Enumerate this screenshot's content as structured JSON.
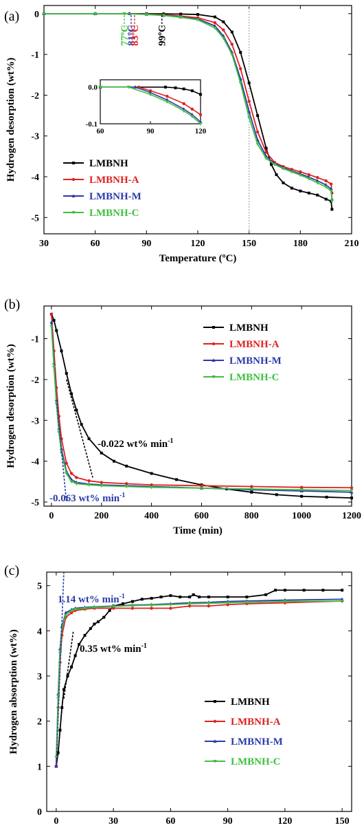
{
  "colors": {
    "LMBNH": "#000000",
    "LMBNH-A": "#e02020",
    "LMBNH-M": "#2a3aa8",
    "LMBNH-C": "#3fbf3f",
    "guide": "#9a9a9a"
  },
  "chart_data": [
    {
      "id": "a",
      "type": "line",
      "panel_label": "(a)",
      "xlabel": "Temperature (ºC)",
      "ylabel": "Hydrogen desorption (wt%)",
      "xlim": [
        30,
        210
      ],
      "ylim": [
        -5.4,
        0.2
      ],
      "xticks": [
        30,
        60,
        90,
        120,
        150,
        180,
        210
      ],
      "yticks": [
        0,
        -1,
        -2,
        -3,
        -4,
        -5
      ],
      "xtick_labels": [
        "30",
        "60",
        "90",
        "120",
        "150",
        "180",
        "210"
      ],
      "ytick_labels": [
        "0",
        "-1",
        "-2",
        "-3",
        "-4",
        "-5"
      ],
      "grid": false,
      "legend": "lower-left",
      "vertical_guide_x": 150,
      "series": [
        {
          "name": "LMBNH",
          "key": "LMBNH",
          "x": [
            30,
            60,
            90,
            100,
            110,
            120,
            130,
            135,
            140,
            145,
            150,
            155,
            160,
            163,
            166,
            170,
            175,
            180,
            185,
            190,
            195,
            198,
            198.5
          ],
          "y": [
            0,
            0,
            0,
            -0.005,
            -0.01,
            -0.02,
            -0.08,
            -0.2,
            -0.45,
            -0.95,
            -1.7,
            -2.5,
            -3.3,
            -3.7,
            -3.95,
            -4.15,
            -4.28,
            -4.35,
            -4.4,
            -4.45,
            -4.55,
            -4.6,
            -4.8
          ]
        },
        {
          "name": "LMBNH-A",
          "key": "LMBNH-A",
          "x": [
            30,
            60,
            80,
            90,
            100,
            110,
            120,
            130,
            135,
            140,
            145,
            150,
            155,
            160,
            165,
            170,
            175,
            180,
            185,
            190,
            195,
            198,
            198.5
          ],
          "y": [
            0,
            0,
            0,
            -0.01,
            -0.03,
            -0.06,
            -0.1,
            -0.22,
            -0.4,
            -0.75,
            -1.35,
            -2.15,
            -2.9,
            -3.4,
            -3.65,
            -3.75,
            -3.82,
            -3.88,
            -3.95,
            -4.02,
            -4.1,
            -4.18,
            -4.4
          ]
        },
        {
          "name": "LMBNH-M",
          "key": "LMBNH-M",
          "x": [
            30,
            60,
            80,
            90,
            100,
            110,
            120,
            130,
            135,
            140,
            145,
            150,
            155,
            160,
            165,
            170,
            175,
            180,
            185,
            190,
            195,
            198,
            198.5
          ],
          "y": [
            0,
            0,
            0,
            -0.015,
            -0.04,
            -0.08,
            -0.13,
            -0.3,
            -0.55,
            -0.95,
            -1.6,
            -2.4,
            -3.1,
            -3.5,
            -3.68,
            -3.78,
            -3.86,
            -3.93,
            -4.01,
            -4.1,
            -4.2,
            -4.3,
            -4.55
          ]
        },
        {
          "name": "LMBNH-C",
          "key": "LMBNH-C",
          "x": [
            30,
            60,
            77,
            90,
            100,
            110,
            120,
            130,
            135,
            140,
            145,
            150,
            155,
            160,
            165,
            170,
            175,
            180,
            185,
            190,
            195,
            198,
            198.5
          ],
          "y": [
            0,
            0,
            0,
            -0.02,
            -0.045,
            -0.09,
            -0.15,
            -0.35,
            -0.6,
            -1.0,
            -1.7,
            -2.55,
            -3.2,
            -3.55,
            -3.7,
            -3.8,
            -3.88,
            -3.96,
            -4.05,
            -4.15,
            -4.25,
            -4.35,
            -4.6
          ]
        }
      ],
      "onset_annotations": [
        {
          "label": "77ºC",
          "x": 77,
          "key": "LMBNH-C"
        },
        {
          "label": "81ºC",
          "x": 81,
          "key": "LMBNH-M"
        },
        {
          "label": "83ºC",
          "x": 83,
          "key": "LMBNH-A"
        },
        {
          "label": "99ºC",
          "x": 99,
          "key": "LMBNH"
        }
      ],
      "inset": {
        "xlim": [
          60,
          120
        ],
        "ylim": [
          -0.1,
          0.02
        ],
        "xticks": [
          60,
          90,
          120
        ],
        "yticks": [
          0.0,
          -0.1
        ],
        "xtick_labels": [
          "60",
          "90",
          "120"
        ],
        "ytick_labels": [
          "0.0",
          "-0.1"
        ],
        "series": [
          {
            "key": "LMBNH",
            "x": [
              60,
              99,
              105,
              110,
              115,
              120
            ],
            "y": [
              0,
              0,
              -0.002,
              -0.005,
              -0.01,
              -0.02
            ]
          },
          {
            "key": "LMBNH-A",
            "x": [
              60,
              83,
              90,
              100,
              110,
              115,
              120
            ],
            "y": [
              0,
              0,
              -0.01,
              -0.025,
              -0.045,
              -0.06,
              -0.075
            ]
          },
          {
            "key": "LMBNH-M",
            "x": [
              60,
              81,
              90,
              100,
              110,
              115,
              120
            ],
            "y": [
              0,
              0,
              -0.015,
              -0.035,
              -0.06,
              -0.075,
              -0.095
            ]
          },
          {
            "key": "LMBNH-C",
            "x": [
              60,
              77,
              90,
              100,
              110,
              115,
              120
            ],
            "y": [
              0,
              0,
              -0.02,
              -0.04,
              -0.065,
              -0.08,
              -0.1
            ]
          }
        ]
      }
    },
    {
      "id": "b",
      "type": "line",
      "panel_label": "(b)",
      "xlabel": "Time (min)",
      "ylabel": "Hydrogen desorption (wt%)",
      "xlim": [
        -30,
        1200
      ],
      "ylim": [
        -5.1,
        -0.2
      ],
      "xticks": [
        0,
        200,
        400,
        600,
        800,
        1000,
        1200
      ],
      "yticks": [
        -1,
        -2,
        -3,
        -4,
        -5
      ],
      "xtick_labels": [
        "0",
        "200",
        "400",
        "600",
        "800",
        "1000",
        "1200"
      ],
      "ytick_labels": [
        "-1",
        "-2",
        "-3",
        "-4",
        "-5"
      ],
      "grid": false,
      "legend": "top-right",
      "series": [
        {
          "name": "LMBNH",
          "key": "LMBNH",
          "x": [
            0,
            10,
            20,
            40,
            60,
            80,
            100,
            120,
            150,
            200,
            250,
            300,
            400,
            500,
            600,
            700,
            800,
            900,
            1000,
            1100,
            1200
          ],
          "y": [
            -0.4,
            -0.55,
            -0.8,
            -1.3,
            -1.85,
            -2.35,
            -2.75,
            -3.1,
            -3.45,
            -3.8,
            -4.0,
            -4.12,
            -4.3,
            -4.45,
            -4.58,
            -4.68,
            -4.76,
            -4.82,
            -4.86,
            -4.88,
            -4.9
          ]
        },
        {
          "name": "LMBNH-A",
          "key": "LMBNH-A",
          "x": [
            0,
            10,
            20,
            30,
            40,
            60,
            80,
            100,
            150,
            200,
            300,
            400,
            600,
            800,
            1000,
            1200
          ],
          "y": [
            -0.4,
            -1.3,
            -2.2,
            -2.9,
            -3.45,
            -4.05,
            -4.3,
            -4.4,
            -4.48,
            -4.52,
            -4.55,
            -4.58,
            -4.6,
            -4.62,
            -4.64,
            -4.65
          ]
        },
        {
          "name": "LMBNH-M",
          "key": "LMBNH-M",
          "x": [
            0,
            10,
            20,
            30,
            40,
            60,
            80,
            100,
            150,
            200,
            300,
            400,
            600,
            800,
            1000,
            1200
          ],
          "y": [
            -0.6,
            -1.6,
            -2.5,
            -3.2,
            -3.7,
            -4.25,
            -4.45,
            -4.52,
            -4.56,
            -4.58,
            -4.6,
            -4.62,
            -4.66,
            -4.7,
            -4.73,
            -4.76
          ]
        },
        {
          "name": "LMBNH-C",
          "key": "LMBNH-C",
          "x": [
            0,
            10,
            20,
            30,
            40,
            60,
            80,
            100,
            150,
            200,
            300,
            400,
            600,
            800,
            1000,
            1200
          ],
          "y": [
            -0.7,
            -1.7,
            -2.6,
            -3.3,
            -3.8,
            -4.3,
            -4.5,
            -4.55,
            -4.58,
            -4.6,
            -4.62,
            -4.64,
            -4.66,
            -4.68,
            -4.7,
            -4.72
          ]
        }
      ],
      "slope_annotations": [
        {
          "label": "-0.022 wt% min",
          "sup": "-1",
          "key": "LMBNH",
          "line": [
            [
              60,
              -2.0
            ],
            [
              165,
              -4.4
            ]
          ]
        },
        {
          "label": "-0.063 wt% min",
          "sup": "-1",
          "key": "LMBNH-M",
          "line": [
            [
              20,
              -2.5
            ],
            [
              60,
              -5.0
            ]
          ]
        }
      ]
    },
    {
      "id": "c",
      "type": "line",
      "panel_label": "(c)",
      "xlabel": "Time (min)",
      "ylabel": "Hydrogen absorption (wt%)",
      "xlim": [
        -5,
        155
      ],
      "ylim": [
        0,
        5.3
      ],
      "xticks": [
        0,
        30,
        60,
        90,
        120,
        150
      ],
      "yticks": [
        0,
        1,
        2,
        3,
        4,
        5
      ],
      "xtick_labels": [
        "0",
        "30",
        "60",
        "90",
        "120",
        "150"
      ],
      "ytick_labels": [
        "0",
        "1",
        "2",
        "3",
        "4",
        "5"
      ],
      "grid": false,
      "legend": "lower-right",
      "series": [
        {
          "name": "LMBNH",
          "key": "LMBNH",
          "x": [
            0,
            1,
            2,
            3,
            4,
            6,
            8,
            10,
            12,
            15,
            18,
            20,
            22,
            25,
            28,
            30,
            35,
            40,
            45,
            50,
            55,
            60,
            65,
            70,
            72,
            75,
            80,
            90,
            100,
            110,
            115,
            120,
            130,
            140,
            150
          ],
          "y": [
            1.0,
            1.3,
            1.8,
            2.3,
            2.7,
            3.0,
            3.2,
            3.45,
            3.7,
            3.9,
            4.05,
            4.15,
            4.2,
            4.3,
            4.45,
            4.55,
            4.6,
            4.65,
            4.7,
            4.72,
            4.75,
            4.78,
            4.75,
            4.75,
            4.8,
            4.75,
            4.75,
            4.75,
            4.75,
            4.8,
            4.9,
            4.9,
            4.9,
            4.9,
            4.9
          ]
        },
        {
          "name": "LMBNH-A",
          "key": "LMBNH-A",
          "x": [
            0,
            1,
            2,
            3,
            5,
            8,
            10,
            15,
            20,
            30,
            40,
            50,
            60,
            70,
            80,
            90,
            100,
            120,
            150
          ],
          "y": [
            1.0,
            2.3,
            3.3,
            3.9,
            4.3,
            4.4,
            4.45,
            4.48,
            4.5,
            4.5,
            4.5,
            4.5,
            4.5,
            4.55,
            4.55,
            4.58,
            4.6,
            4.62,
            4.66
          ]
        },
        {
          "name": "LMBNH-M",
          "key": "LMBNH-M",
          "x": [
            0,
            1,
            2,
            3,
            5,
            8,
            10,
            15,
            20,
            30,
            40,
            50,
            60,
            70,
            80,
            90,
            100,
            120,
            150
          ],
          "y": [
            1.0,
            2.6,
            3.6,
            4.1,
            4.4,
            4.47,
            4.5,
            4.52,
            4.53,
            4.55,
            4.57,
            4.58,
            4.6,
            4.62,
            4.63,
            4.65,
            4.66,
            4.68,
            4.7
          ]
        },
        {
          "name": "LMBNH-C",
          "key": "LMBNH-C",
          "x": [
            0,
            1,
            2,
            3,
            5,
            8,
            10,
            15,
            20,
            30,
            40,
            50,
            60,
            70,
            80,
            90,
            100,
            120,
            150
          ],
          "y": [
            1.2,
            2.5,
            3.5,
            4.05,
            4.35,
            4.45,
            4.48,
            4.5,
            4.52,
            4.54,
            4.56,
            4.57,
            4.58,
            4.6,
            4.61,
            4.62,
            4.63,
            4.65,
            4.66
          ]
        }
      ],
      "slope_annotations": [
        {
          "label": "1.14 wt% min",
          "sup": "-1",
          "key": "LMBNH-M",
          "line": [
            [
              0,
              1.0
            ],
            [
              4,
              5.3
            ]
          ]
        },
        {
          "label": "0.35 wt% min",
          "sup": "-1",
          "key": "LMBNH",
          "line": [
            [
              4,
              2.5
            ],
            [
              9,
              4.0
            ]
          ]
        }
      ]
    }
  ]
}
